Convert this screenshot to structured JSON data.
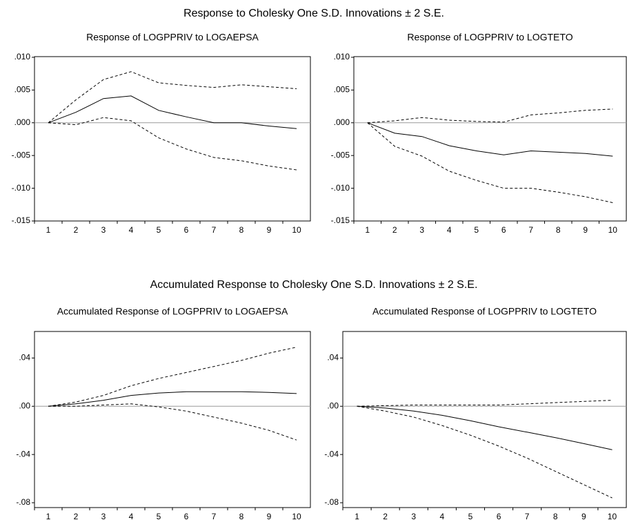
{
  "group_titles": [
    "Response to Cholesky One S.D. Innovations ± 2 S.E.",
    "Accumulated Response to Cholesky One S.D. Innovations ± 2 S.E."
  ],
  "chart_data": [
    {
      "type": "line",
      "title": "Response of LOGPPRIV to LOGAEPSA",
      "categories": [
        "1",
        "2",
        "3",
        "4",
        "5",
        "6",
        "7",
        "8",
        "9",
        "10"
      ],
      "ylim": [
        -0.015,
        0.0101
      ],
      "yticks": [
        {
          "value": -0.015,
          "label": "-.015"
        },
        {
          "value": -0.01,
          "label": "-.010"
        },
        {
          "value": -0.005,
          "label": "-.005"
        },
        {
          "value": 0,
          "label": ".000"
        },
        {
          "value": 0.005,
          "label": ".005"
        },
        {
          "value": 0.01,
          "label": ".010"
        }
      ],
      "zero_line": true,
      "series": [
        {
          "color": "#000000",
          "dashed": false,
          "values": [
            0,
            0.0016,
            0.0037,
            0.0041,
            0.0019,
            0.0009,
            0.0,
            0.0,
            -0.0005,
            -0.0009
          ]
        },
        {
          "color": "#000000",
          "dashed": true,
          "values": [
            0,
            0.0035,
            0.0066,
            0.0078,
            0.0061,
            0.0057,
            0.0054,
            0.0058,
            0.0055,
            0.0052
          ]
        },
        {
          "color": "#000000",
          "dashed": true,
          "values": [
            0,
            -0.0003,
            0.0008,
            0.0003,
            -0.0023,
            -0.004,
            -0.0053,
            -0.0058,
            -0.0066,
            -0.0072
          ]
        }
      ]
    },
    {
      "type": "line",
      "title": "Response of LOGPPRIV to LOGTETO",
      "categories": [
        "1",
        "2",
        "3",
        "4",
        "5",
        "6",
        "7",
        "8",
        "9",
        "10"
      ],
      "ylim": [
        -0.015,
        0.0101
      ],
      "yticks": [
        {
          "value": -0.015,
          "label": "-.015"
        },
        {
          "value": -0.01,
          "label": "-.010"
        },
        {
          "value": -0.005,
          "label": "-.005"
        },
        {
          "value": 0,
          "label": ".000"
        },
        {
          "value": 0.005,
          "label": ".005"
        },
        {
          "value": 0.01,
          "label": ".010"
        }
      ],
      "zero_line": true,
      "series": [
        {
          "color": "#000000",
          "dashed": false,
          "values": [
            0,
            -0.0016,
            -0.0021,
            -0.0035,
            -0.0043,
            -0.0049,
            -0.0043,
            -0.0045,
            -0.0047,
            -0.0051
          ]
        },
        {
          "color": "#000000",
          "dashed": true,
          "values": [
            0,
            0.0003,
            0.0008,
            0.0004,
            0.0002,
            0.0001,
            0.0012,
            0.0015,
            0.0019,
            0.0021
          ]
        },
        {
          "color": "#000000",
          "dashed": true,
          "values": [
            0,
            -0.0036,
            -0.0051,
            -0.0074,
            -0.0088,
            -0.01,
            -0.01,
            -0.0106,
            -0.0113,
            -0.0122
          ]
        }
      ]
    },
    {
      "type": "line",
      "title": "Accumulated Response of LOGPPRIV to LOGAEPSA",
      "categories": [
        "1",
        "2",
        "3",
        "4",
        "5",
        "6",
        "7",
        "8",
        "9",
        "10"
      ],
      "ylim": [
        -0.084,
        0.062
      ],
      "yticks": [
        {
          "value": -0.08,
          "label": "-.08"
        },
        {
          "value": -0.04,
          "label": "-.04"
        },
        {
          "value": 0,
          "label": ".00"
        },
        {
          "value": 0.04,
          "label": ".04"
        }
      ],
      "zero_line": true,
      "series": [
        {
          "color": "#000000",
          "dashed": false,
          "values": [
            0,
            0.002,
            0.005,
            0.009,
            0.011,
            0.012,
            0.012,
            0.012,
            0.0115,
            0.0105
          ]
        },
        {
          "color": "#000000",
          "dashed": true,
          "values": [
            0,
            0.0035,
            0.009,
            0.017,
            0.023,
            0.028,
            0.033,
            0.038,
            0.044,
            0.049
          ]
        },
        {
          "color": "#000000",
          "dashed": true,
          "values": [
            0,
            0,
            0.001,
            0.002,
            -0.0005,
            -0.004,
            -0.009,
            -0.014,
            -0.02,
            -0.028
          ]
        }
      ]
    },
    {
      "type": "line",
      "title": "Accumulated Response of LOGPPRIV to LOGTETO",
      "categories": [
        "1",
        "2",
        "3",
        "4",
        "5",
        "6",
        "7",
        "8",
        "9",
        "10"
      ],
      "ylim": [
        -0.084,
        0.062
      ],
      "yticks": [
        {
          "value": -0.08,
          "label": "-.08"
        },
        {
          "value": -0.04,
          "label": "-.04"
        },
        {
          "value": 0,
          "label": ".00"
        },
        {
          "value": 0.04,
          "label": ".04"
        }
      ],
      "zero_line": true,
      "series": [
        {
          "color": "#000000",
          "dashed": false,
          "values": [
            0,
            -0.0015,
            -0.004,
            -0.0075,
            -0.012,
            -0.017,
            -0.0215,
            -0.026,
            -0.031,
            -0.036
          ]
        },
        {
          "color": "#000000",
          "dashed": true,
          "values": [
            0,
            0.0005,
            0.001,
            0.001,
            0.001,
            0.001,
            0.002,
            0.003,
            0.004,
            0.005
          ]
        },
        {
          "color": "#000000",
          "dashed": true,
          "values": [
            0,
            -0.004,
            -0.009,
            -0.016,
            -0.024,
            -0.033,
            -0.043,
            -0.054,
            -0.065,
            -0.076
          ]
        }
      ]
    }
  ]
}
